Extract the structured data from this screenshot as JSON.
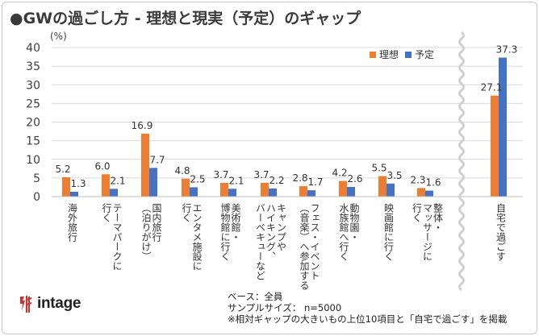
{
  "title": "●GWの過ごし方 - 理想と現実（予定）のギャップ",
  "unit": "(%)",
  "colors": {
    "ideal": "#ED7D31",
    "plan": "#4472C4",
    "grid": "#d9d9d9"
  },
  "logo_text": "intage",
  "notes": [
    "ベース：全員",
    "サンプルサイズ： n=5000",
    "※相対ギャップの大きいもの上位10項目と「自宅で過ごす」を掲載"
  ],
  "chart_data": {
    "type": "bar",
    "title": "GWの過ごし方 - 理想と現実（予定）のギャップ",
    "ylabel": "(%)",
    "ylim": [
      0,
      40
    ],
    "yticks": [
      0,
      5,
      10,
      15,
      20,
      25,
      30,
      35,
      40
    ],
    "grid": true,
    "legend_position": "top-right",
    "categories": [
      "海外旅行",
      "テーマパークに\n行く",
      "国内旅行\n（泊りがけ）",
      "エンタメ施設に\n行く",
      "美術館・\n博物館に行く",
      "キャンプや\nハイキング、\nバーベキューなど",
      "フェス・イベント\n（音楽）へ参加する",
      "動物園・\n水族館へ行く",
      "映画館に行く",
      "整体・\nマッサージに\n行く",
      "自宅で過ごす"
    ],
    "series": [
      {
        "name": "理想",
        "values": [
          5.2,
          6.0,
          16.9,
          4.8,
          3.7,
          3.7,
          2.8,
          4.2,
          5.5,
          2.3,
          27.1
        ]
      },
      {
        "name": "予定",
        "values": [
          1.3,
          2.1,
          7.7,
          2.5,
          2.1,
          2.2,
          1.7,
          2.6,
          3.5,
          1.6,
          37.3
        ]
      }
    ]
  }
}
